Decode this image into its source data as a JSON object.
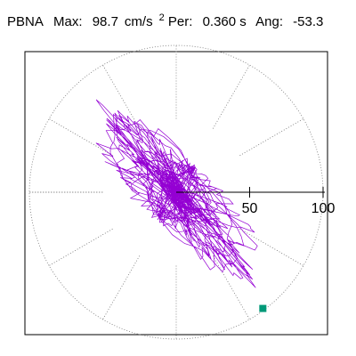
{
  "header": {
    "station": "PBNA",
    "max_label": "Max:",
    "max_value": "98.7",
    "max_unit": "cm/s",
    "max_unit_exp": "2",
    "per_label": "Per:",
    "per_value": "0.360 s",
    "ang_label": "Ang:",
    "ang_value": "-53.3"
  },
  "chart_data": {
    "type": "scatter",
    "subtype": "polar-particle-motion",
    "title": "PBNA Max: 98.7 cm/s2 Per: 0.360 s Ang: -53.3",
    "radial_range": [
      0,
      100
    ],
    "radial_ticks": [
      50,
      100
    ],
    "radial_tick_labels": [
      "50",
      "100"
    ],
    "angular_grid_deg": [
      0,
      30,
      60,
      90,
      120,
      150,
      180,
      210,
      240,
      270,
      300,
      330
    ],
    "grid": true,
    "trace_color": "#9400d3",
    "marker_color": "#009978",
    "max_amplitude": 98.7,
    "max_angle_deg": -53.3,
    "max_point": {
      "r": 98.7,
      "angle_deg": -53.3
    }
  }
}
